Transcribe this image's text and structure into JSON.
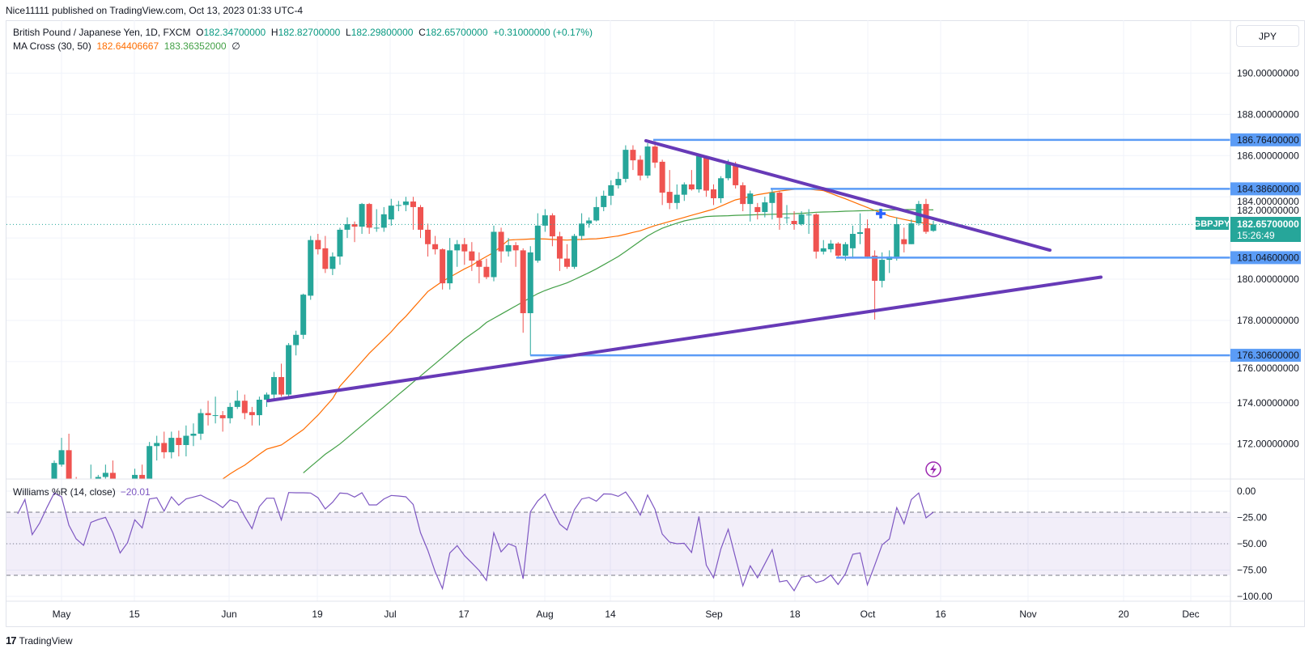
{
  "publisher_line": "Nice11111 published on TradingView.com, Oct 13, 2023 01:33 UTC-4",
  "legend": {
    "title": "British Pound / Japanese Yen, 1D, FXCM",
    "o_label": "O",
    "o": "182.34700000",
    "h_label": "H",
    "h": "182.82700000",
    "l_label": "L",
    "l": "182.29800000",
    "c_label": "C",
    "c": "182.65700000",
    "change": "+0.31000000 (+0.17%)",
    "ma_title": "MA Cross (30, 50)",
    "ma30_value": "182.64406667",
    "ma50_value": "183.36352000",
    "ma_extra": "∅"
  },
  "currency_button": "JPY",
  "williams_legend": {
    "title": "Williams %R (14, close)",
    "value": "−20.01"
  },
  "last_price": {
    "symbol": "GBPJPY",
    "price": "182.65700000",
    "countdown": "15:26:49"
  },
  "footer_brand": "TradingView",
  "icons": {
    "event": "lightning-icon",
    "brand": "tradingview-logo-icon"
  },
  "colors": {
    "up": "#26a69a",
    "down": "#ef5350",
    "ma30": "#ff6d00",
    "ma50": "#43a047",
    "williams": "#7e57c2",
    "levels": "#5b9cf6",
    "trendlines": "#673ab7",
    "last_price": "#26a69a"
  },
  "chart_data": {
    "type": "candlestick",
    "symbol": "GBPJPY",
    "interval": "1D",
    "price_axis": {
      "ticks": [
        "190.00000000",
        "188.00000000",
        "186.00000000",
        "184.00000000",
        "182.00000000",
        "180.00000000",
        "178.00000000",
        "176.00000000",
        "174.00000000",
        "172.00000000"
      ],
      "range": [
        170.3,
        192.57
      ]
    },
    "x_ticks": [
      "May",
      "15",
      "Jun",
      "19",
      "Jul",
      "17",
      "Aug",
      "14",
      "Sep",
      "18",
      "Oct",
      "16",
      "Nov",
      "20",
      "Dec"
    ],
    "ohlc": [
      [
        169.6,
        169.9,
        169.3,
        169.8
      ],
      [
        169.8,
        170.0,
        169.4,
        169.5
      ],
      [
        169.5,
        170.1,
        169.4,
        170.0
      ],
      [
        170.0,
        170.2,
        169.5,
        169.7
      ],
      [
        169.7,
        170.1,
        169.5,
        170.0
      ],
      [
        170.0,
        171.2,
        169.9,
        171.08
      ],
      [
        171.0,
        172.3,
        170.9,
        171.7
      ],
      [
        171.7,
        172.5,
        169.6,
        169.9
      ],
      [
        169.9,
        170.4,
        169.4,
        169.8
      ],
      [
        169.8,
        170.1,
        169.3,
        169.6
      ],
      [
        169.6,
        171.0,
        169.5,
        170.0
      ],
      [
        170.0,
        170.5,
        169.8,
        170.4
      ],
      [
        170.4,
        171.0,
        170.2,
        170.6
      ],
      [
        170.6,
        171.2,
        169.9,
        170.2
      ],
      [
        170.2,
        170.3,
        169.6,
        169.9
      ],
      [
        169.9,
        170.2,
        169.5,
        169.8
      ],
      [
        169.8,
        170.8,
        169.7,
        170.5
      ],
      [
        170.5,
        171.0,
        169.9,
        170.2
      ],
      [
        170.2,
        172.1,
        170.1,
        171.9
      ],
      [
        171.9,
        172.4,
        171.2,
        172.05
      ],
      [
        172.05,
        172.6,
        171.3,
        171.6
      ],
      [
        171.6,
        172.6,
        171.3,
        172.3
      ],
      [
        172.3,
        172.65,
        171.4,
        171.95
      ],
      [
        171.95,
        172.9,
        171.4,
        172.4
      ],
      [
        172.4,
        173.0,
        171.9,
        172.5
      ],
      [
        172.5,
        173.7,
        172.2,
        173.5
      ],
      [
        173.5,
        174.1,
        172.9,
        173.4
      ],
      [
        173.4,
        174.3,
        173.0,
        173.4
      ],
      [
        173.4,
        173.6,
        172.6,
        173.25
      ],
      [
        173.25,
        174.0,
        173.0,
        173.8
      ],
      [
        173.8,
        174.6,
        173.7,
        174.1
      ],
      [
        174.1,
        174.4,
        173.2,
        173.5
      ],
      [
        173.55,
        173.8,
        172.9,
        173.4
      ],
      [
        173.4,
        174.3,
        172.9,
        174.15
      ],
      [
        174.15,
        174.5,
        173.8,
        174.4
      ],
      [
        174.4,
        175.5,
        174.2,
        175.25
      ],
      [
        175.25,
        175.9,
        174.3,
        174.4
      ],
      [
        174.4,
        176.9,
        174.3,
        176.8
      ],
      [
        176.8,
        177.5,
        176.3,
        177.3
      ],
      [
        177.3,
        179.3,
        177.1,
        179.25
      ],
      [
        179.2,
        182.1,
        179.0,
        181.9
      ],
      [
        181.9,
        182.2,
        181.2,
        181.45
      ],
      [
        181.5,
        182.1,
        180.3,
        180.5
      ],
      [
        180.5,
        181.3,
        180.2,
        181.1
      ],
      [
        181.1,
        182.5,
        180.7,
        182.4
      ],
      [
        182.4,
        183.0,
        182.0,
        182.67
      ],
      [
        182.67,
        182.8,
        181.8,
        182.55
      ],
      [
        182.55,
        183.7,
        182.2,
        183.65
      ],
      [
        183.65,
        183.7,
        182.2,
        182.5
      ],
      [
        182.5,
        183.4,
        182.3,
        182.5
      ],
      [
        182.5,
        183.5,
        182.3,
        183.15
      ],
      [
        182.9,
        183.9,
        182.6,
        183.57
      ],
      [
        183.57,
        183.8,
        183.3,
        183.6
      ],
      [
        183.6,
        184.0,
        183.3,
        183.77
      ],
      [
        183.77,
        184.0,
        182.4,
        183.5
      ],
      [
        183.5,
        183.6,
        182.0,
        182.4
      ],
      [
        182.4,
        182.7,
        181.1,
        181.7
      ],
      [
        181.7,
        182.1,
        181.2,
        181.45
      ],
      [
        181.45,
        181.5,
        179.5,
        179.8
      ],
      [
        179.8,
        182.0,
        179.5,
        181.4
      ],
      [
        181.4,
        181.9,
        180.6,
        181.7
      ],
      [
        181.7,
        182.0,
        180.7,
        181.35
      ],
      [
        181.35,
        181.8,
        180.4,
        180.9
      ],
      [
        180.9,
        181.3,
        179.8,
        180.6
      ],
      [
        180.6,
        181.0,
        180.0,
        180.1
      ],
      [
        180.1,
        182.6,
        179.9,
        182.3
      ],
      [
        182.3,
        182.5,
        180.8,
        181.35
      ],
      [
        181.35,
        182.0,
        181.1,
        181.65
      ],
      [
        181.65,
        181.8,
        180.6,
        181.4
      ],
      [
        181.4,
        181.5,
        177.4,
        178.35
      ],
      [
        178.35,
        181.6,
        176.3,
        181.3
      ],
      [
        180.9,
        183.2,
        180.8,
        182.6
      ],
      [
        182.6,
        183.4,
        182.3,
        183.1
      ],
      [
        183.1,
        183.2,
        181.6,
        182.08
      ],
      [
        182.08,
        182.3,
        180.4,
        181.0
      ],
      [
        181.0,
        181.7,
        180.5,
        180.6
      ],
      [
        180.6,
        182.2,
        180.5,
        182.1
      ],
      [
        182.1,
        183.2,
        181.9,
        182.7
      ],
      [
        182.7,
        183.0,
        182.5,
        182.85
      ],
      [
        182.85,
        184.0,
        182.8,
        183.5
      ],
      [
        183.5,
        184.3,
        183.3,
        184.05
      ],
      [
        184.05,
        184.8,
        183.6,
        184.56
      ],
      [
        184.56,
        185.2,
        184.4,
        184.87
      ],
      [
        184.87,
        186.5,
        184.7,
        186.28
      ],
      [
        186.28,
        186.5,
        185.3,
        185.77
      ],
      [
        185.8,
        186.0,
        184.8,
        185.03
      ],
      [
        185.03,
        186.6,
        184.9,
        186.44
      ],
      [
        186.44,
        186.7,
        185.4,
        185.66
      ],
      [
        185.7,
        185.8,
        183.6,
        184.2
      ],
      [
        184.24,
        185.3,
        183.4,
        183.7
      ],
      [
        183.7,
        184.6,
        183.4,
        184.1
      ],
      [
        184.1,
        184.7,
        183.8,
        184.6
      ],
      [
        184.6,
        185.3,
        184.3,
        184.36
      ],
      [
        184.36,
        186.1,
        184.2,
        185.97
      ],
      [
        185.97,
        186.0,
        184.0,
        184.3
      ],
      [
        184.36,
        184.6,
        183.6,
        183.93
      ],
      [
        183.93,
        185.0,
        183.7,
        184.9
      ],
      [
        184.9,
        185.8,
        184.8,
        185.58
      ],
      [
        185.58,
        185.7,
        184.4,
        184.56
      ],
      [
        184.56,
        184.7,
        183.3,
        183.65
      ],
      [
        183.65,
        184.3,
        182.8,
        184.16
      ],
      [
        183.5,
        183.7,
        182.9,
        183.26
      ],
      [
        183.26,
        184.0,
        183.0,
        183.73
      ],
      [
        183.7,
        184.4,
        182.9,
        184.2
      ],
      [
        184.2,
        184.3,
        182.4,
        182.98
      ],
      [
        183.0,
        183.6,
        182.7,
        183.0
      ],
      [
        182.83,
        183.3,
        182.4,
        182.67
      ],
      [
        182.67,
        183.3,
        182.6,
        183.14
      ],
      [
        183.14,
        183.4,
        182.2,
        183.14
      ],
      [
        183.14,
        183.2,
        181.0,
        181.34
      ],
      [
        181.34,
        181.9,
        181.2,
        181.5
      ],
      [
        181.45,
        181.9,
        181.3,
        181.73
      ],
      [
        181.73,
        181.8,
        181.0,
        181.14
      ],
      [
        181.14,
        181.8,
        180.9,
        181.7
      ],
      [
        181.5,
        182.6,
        181.0,
        182.2
      ],
      [
        182.2,
        183.2,
        181.7,
        182.28
      ],
      [
        182.47,
        182.9,
        181.0,
        181.1
      ],
      [
        181.14,
        181.4,
        178.04,
        179.92
      ],
      [
        179.92,
        181.3,
        179.6,
        180.94
      ],
      [
        180.94,
        181.4,
        180.3,
        181.1
      ],
      [
        181.0,
        183.0,
        180.9,
        182.67
      ],
      [
        181.94,
        182.5,
        181.3,
        181.7
      ],
      [
        181.7,
        182.9,
        181.7,
        182.71
      ],
      [
        182.71,
        183.8,
        182.6,
        183.65
      ],
      [
        183.65,
        183.9,
        182.2,
        182.3
      ],
      [
        182.347,
        182.827,
        182.298,
        182.657
      ]
    ],
    "ma30": [
      null,
      null,
      null,
      null,
      null,
      null,
      null,
      null,
      null,
      null,
      null,
      null,
      null,
      null,
      null,
      null,
      null,
      null,
      null,
      null,
      null,
      null,
      null,
      null,
      null,
      null,
      null,
      null,
      170.3,
      170.55,
      170.77,
      170.97,
      171.24,
      171.5,
      171.75,
      171.85,
      171.95,
      172.2,
      172.45,
      172.7,
      173.05,
      173.4,
      173.8,
      174.2,
      174.8,
      175.2,
      175.6,
      176.0,
      176.4,
      176.75,
      177.1,
      177.45,
      177.85,
      178.2,
      178.6,
      179.0,
      179.4,
      179.65,
      179.9,
      180.1,
      180.3,
      180.5,
      180.67,
      180.9,
      181.1,
      181.3,
      181.6,
      181.9,
      181.92,
      181.93,
      181.95,
      181.96,
      181.95,
      181.93,
      181.91,
      181.9,
      181.92,
      181.93,
      181.95,
      181.96,
      182.0,
      182.05,
      182.1,
      182.18,
      182.27,
      182.35,
      182.48,
      182.6,
      182.7,
      182.8,
      182.9,
      183.0,
      183.1,
      183.2,
      183.3,
      183.4,
      183.55,
      183.7,
      183.85,
      183.93,
      184.02,
      184.1,
      184.16,
      184.22,
      184.28,
      184.32,
      184.36,
      184.4,
      184.37,
      184.33,
      184.3,
      184.17,
      184.03,
      183.9,
      183.76,
      183.62,
      183.48,
      183.34,
      183.2,
      183.06,
      182.98,
      182.9,
      182.83,
      182.77,
      182.7,
      182.644
    ],
    "ma50": [
      null,
      null,
      null,
      null,
      null,
      null,
      null,
      null,
      null,
      null,
      null,
      null,
      null,
      null,
      null,
      null,
      null,
      null,
      null,
      null,
      null,
      null,
      null,
      null,
      null,
      null,
      null,
      null,
      null,
      null,
      null,
      null,
      null,
      null,
      null,
      null,
      null,
      null,
      null,
      170.6,
      170.9,
      171.2,
      171.5,
      171.75,
      172.0,
      172.3,
      172.6,
      172.9,
      173.2,
      173.5,
      173.8,
      174.1,
      174.4,
      174.7,
      175.0,
      175.3,
      175.6,
      175.9,
      176.2,
      176.5,
      176.8,
      177.1,
      177.35,
      177.6,
      177.9,
      178.1,
      178.3,
      178.5,
      178.7,
      178.9,
      179.1,
      179.3,
      179.45,
      179.58,
      179.7,
      179.82,
      179.98,
      180.15,
      180.32,
      180.5,
      180.7,
      180.9,
      181.1,
      181.35,
      181.6,
      181.85,
      182.1,
      182.3,
      182.47,
      182.6,
      182.72,
      182.83,
      182.9,
      182.97,
      183.04,
      183.06,
      183.07,
      183.08,
      183.1,
      183.11,
      183.12,
      183.13,
      183.14,
      183.15,
      183.16,
      183.17,
      183.18,
      183.2,
      183.22,
      183.25,
      183.26,
      183.27,
      183.28,
      183.3,
      183.31,
      183.32,
      183.33,
      183.34,
      183.35,
      183.36,
      183.37,
      183.38,
      183.38,
      183.37,
      183.37,
      183.364
    ],
    "horizontal_levels": [
      {
        "price": 186.764,
        "label": "186.76400000"
      },
      {
        "price": 184.386,
        "label": "184.38600000"
      },
      {
        "price": 181.046,
        "label": "181.04600000"
      },
      {
        "price": 176.306,
        "label": "176.30600000"
      }
    ],
    "trendlines": [
      {
        "from_price": 186.72,
        "to_price": 181.41
      },
      {
        "from_price": 174.1,
        "to_price": 180.1
      }
    ],
    "williams_r": {
      "ticks": [
        "0.00",
        "−25.00",
        "−50.00",
        "−75.00",
        "−100.00"
      ],
      "range": [
        -100,
        0
      ],
      "levels": [
        -20,
        -50,
        -80
      ],
      "values": [
        -21.5,
        -7.9,
        -41.3,
        -30.5,
        -15.6,
        -1.8,
        -5.4,
        -32.3,
        -45.4,
        -51.5,
        -29.7,
        -27,
        -24.9,
        -39.5,
        -58.7,
        -49,
        -27.2,
        -34.9,
        -7.4,
        -6.2,
        -19,
        -5.4,
        -13.3,
        -7.4,
        -5.6,
        -3.8,
        -7.4,
        -10.8,
        -15.6,
        -8.2,
        -10.8,
        -24.1,
        -35.6,
        -14.6,
        -6.7,
        -6.7,
        -27.4,
        -1.3,
        -1.5,
        -1.5,
        -1.8,
        -6.2,
        -16.9,
        -10.5,
        -1.8,
        -2.3,
        -5.6,
        -1.5,
        -13.1,
        -13.1,
        -7.4,
        -4.1,
        -4.6,
        -5.4,
        -12.6,
        -39.5,
        -56.2,
        -76.7,
        -92.6,
        -58.7,
        -51.8,
        -61.3,
        -68.2,
        -75.4,
        -84.9,
        -39.5,
        -57.7,
        -50,
        -52.8,
        -83.3,
        -19.5,
        -9.2,
        -2.8,
        -17.7,
        -31.3,
        -36.9,
        -17.7,
        -7.4,
        -5.9,
        -9.5,
        -2.6,
        -2.8,
        -4.9,
        -0.8,
        -10.8,
        -22.8,
        -3.6,
        -17.2,
        -40.8,
        -48.5,
        -50,
        -49.5,
        -58.2,
        -24.1,
        -70.3,
        -82.3,
        -54.9,
        -36.2,
        -63.3,
        -90,
        -71,
        -82.3,
        -69,
        -55.6,
        -86.2,
        -84.9,
        -94.6,
        -81.8,
        -80.5,
        -86.9,
        -84.9,
        -79.7,
        -88.7,
        -78.5,
        -60,
        -58.7,
        -89,
        -70.3,
        -51,
        -45.4,
        -15.6,
        -31,
        -7.9,
        -1.8,
        -25.4,
        -20.01
      ]
    }
  }
}
